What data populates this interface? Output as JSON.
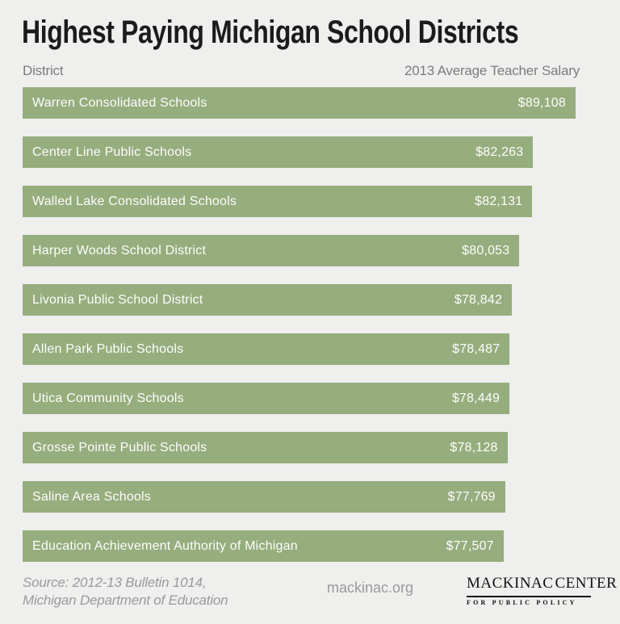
{
  "page": {
    "background_color": "#efefee",
    "bar_color": "#96ad7d",
    "accent_teal": "#1d7b8e"
  },
  "header": {
    "title": "Highest Paying Michigan School Districts",
    "column_left": "District",
    "column_right": "2013 Average Teacher Salary"
  },
  "chart_data": {
    "type": "bar",
    "orientation": "horizontal",
    "title": "Highest Paying Michigan School Districts",
    "category_label": "District",
    "value_label": "2013 Average Teacher Salary",
    "bar_color": "#96ad7d",
    "value_range": [
      0,
      89108
    ],
    "categories": [
      "Warren Consolidated Schools",
      "Center Line Public Schools",
      "Walled Lake Consolidated Schools",
      "Harper Woods School District",
      "Livonia Public School District",
      "Allen Park Public Schools",
      "Utica Community Schools",
      "Grosse Pointe Public Schools",
      "Saline Area Schools",
      "Education Achievement Authority of Michigan"
    ],
    "values": [
      89108,
      82263,
      82131,
      80053,
      78842,
      78487,
      78449,
      78128,
      77769,
      77507
    ],
    "value_labels": [
      "$89,108",
      "$82,263",
      "$82,131",
      "$80,053",
      "$78,842",
      "$78,487",
      "$78,449",
      "$78,128",
      "$77,769",
      "$77,507"
    ]
  },
  "footer": {
    "source_line1": "Source: 2012-13 Bulletin 1014,",
    "source_line2": "Michigan Department of Education",
    "website": "mackinac.org",
    "logo": {
      "word_left": "MACKINAC",
      "word_right": "CENTER",
      "subtitle": "FOR PUBLIC POLICY",
      "michigan_icon_color": "#1d7b8e"
    }
  }
}
